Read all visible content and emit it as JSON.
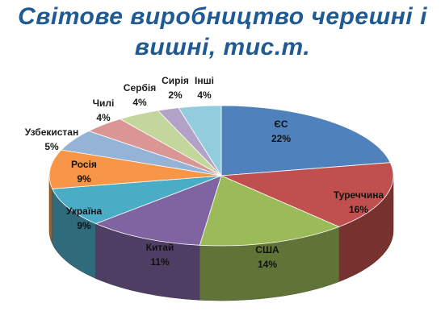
{
  "title": {
    "line1": "Світове виробництво черешні і",
    "line2": "вишні, тис.т."
  },
  "chart_data": {
    "type": "pie",
    "title": "Світове виробництво черешні і вишні, тис.т.",
    "slices": [
      {
        "label": "ЄС",
        "value": 22,
        "value_text": "22%",
        "color": "#4f81bd"
      },
      {
        "label": "Туреччина",
        "value": 16,
        "value_text": "16%",
        "color": "#c0504d"
      },
      {
        "label": "США",
        "value": 14,
        "value_text": "14%",
        "color": "#9bbb59"
      },
      {
        "label": "Китай",
        "value": 11,
        "value_text": "11%",
        "color": "#8064a2"
      },
      {
        "label": "Україна",
        "value": 9,
        "value_text": "9%",
        "color": "#4bacc6"
      },
      {
        "label": "Росія",
        "value": 9,
        "value_text": "9%",
        "color": "#f79646"
      },
      {
        "label": "Узбекистан",
        "value": 5,
        "value_text": "5%",
        "color": "#95b3d7"
      },
      {
        "label": "Чилі",
        "value": 4,
        "value_text": "4%",
        "color": "#d99694"
      },
      {
        "label": "Сербія",
        "value": 4,
        "value_text": "4%",
        "color": "#c3d69b"
      },
      {
        "label": "Сирія",
        "value": 2,
        "value_text": "2%",
        "color": "#b3a2c7"
      },
      {
        "label": "Інші",
        "value": 4,
        "value_text": "4%",
        "color": "#93cddd"
      }
    ]
  }
}
